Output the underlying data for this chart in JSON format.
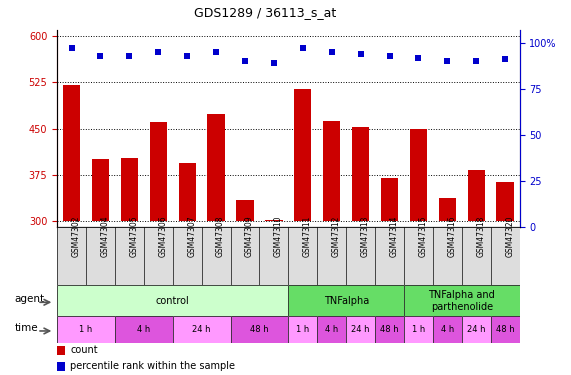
{
  "title": "GDS1289 / 36113_s_at",
  "samples": [
    "GSM47302",
    "GSM47304",
    "GSM47305",
    "GSM47306",
    "GSM47307",
    "GSM47308",
    "GSM47309",
    "GSM47310",
    "GSM47311",
    "GSM47312",
    "GSM47313",
    "GSM47314",
    "GSM47315",
    "GSM47316",
    "GSM47318",
    "GSM47320"
  ],
  "counts": [
    521,
    400,
    402,
    460,
    395,
    474,
    335,
    302,
    515,
    463,
    452,
    370,
    450,
    338,
    383,
    363
  ],
  "percentiles": [
    97,
    93,
    93,
    95,
    93,
    95,
    90,
    89,
    97,
    95,
    94,
    93,
    92,
    90,
    90,
    91
  ],
  "bar_color": "#cc0000",
  "dot_color": "#0000cc",
  "ylim_left": [
    290,
    610
  ],
  "ylim_right": [
    0,
    107
  ],
  "yticks_left": [
    300,
    375,
    450,
    525,
    600
  ],
  "yticks_right": [
    0,
    25,
    50,
    75,
    100
  ],
  "bar_bottom": 300,
  "agent_groups": [
    {
      "label": "control",
      "start": 0,
      "end": 8,
      "color": "#ccffcc"
    },
    {
      "label": "TNFalpha",
      "start": 8,
      "end": 12,
      "color": "#66dd66"
    },
    {
      "label": "TNFalpha and\nparthenolide",
      "start": 12,
      "end": 16,
      "color": "#66dd66"
    }
  ],
  "time_groups": [
    {
      "label": "1 h",
      "start": 0,
      "end": 2,
      "color": "#ff99ff"
    },
    {
      "label": "4 h",
      "start": 2,
      "end": 4,
      "color": "#dd55dd"
    },
    {
      "label": "24 h",
      "start": 4,
      "end": 6,
      "color": "#ff99ff"
    },
    {
      "label": "48 h",
      "start": 6,
      "end": 8,
      "color": "#dd55dd"
    },
    {
      "label": "1 h",
      "start": 8,
      "end": 9,
      "color": "#ff99ff"
    },
    {
      "label": "4 h",
      "start": 9,
      "end": 10,
      "color": "#dd55dd"
    },
    {
      "label": "24 h",
      "start": 10,
      "end": 11,
      "color": "#ff99ff"
    },
    {
      "label": "48 h",
      "start": 11,
      "end": 12,
      "color": "#dd55dd"
    },
    {
      "label": "1 h",
      "start": 12,
      "end": 13,
      "color": "#ff99ff"
    },
    {
      "label": "4 h",
      "start": 13,
      "end": 14,
      "color": "#dd55dd"
    },
    {
      "label": "24 h",
      "start": 14,
      "end": 15,
      "color": "#ff99ff"
    },
    {
      "label": "48 h",
      "start": 15,
      "end": 16,
      "color": "#dd55dd"
    }
  ],
  "legend_items": [
    {
      "label": "count",
      "color": "#cc0000"
    },
    {
      "label": "percentile rank within the sample",
      "color": "#0000cc"
    }
  ],
  "tick_label_color_left": "#cc0000",
  "tick_label_color_right": "#0000cc"
}
